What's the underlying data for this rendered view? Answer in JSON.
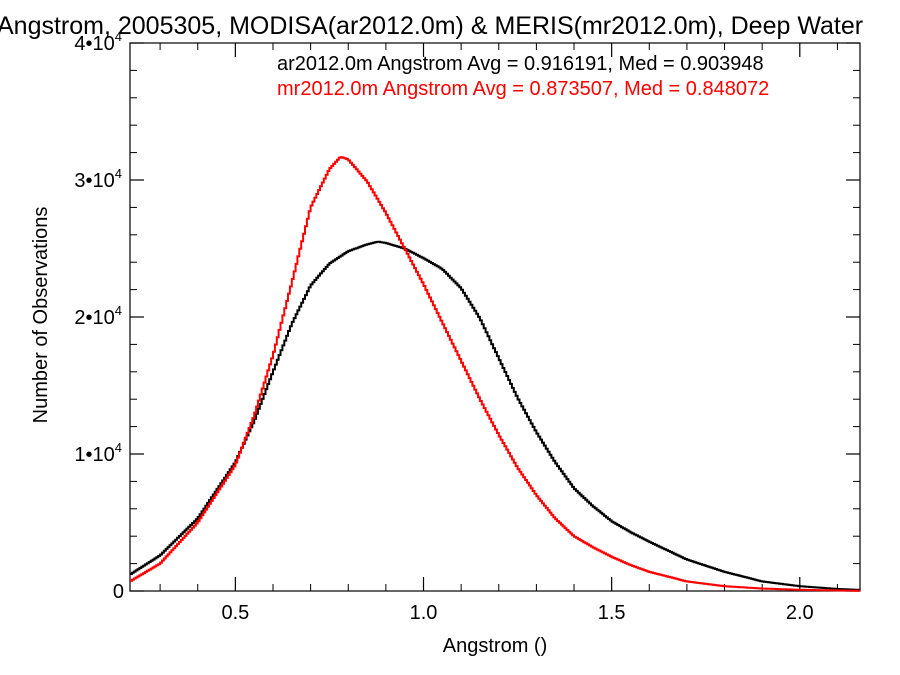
{
  "chart_data": {
    "type": "line",
    "title": "Angstrom, 2005305, MODISA(ar2012.0m) & MERIS(mr2012.0m), Deep Water",
    "xlabel": "Angstrom ()",
    "ylabel": "Number of Observations",
    "xlim": [
      0.22,
      2.16
    ],
    "ylim": [
      0,
      40000
    ],
    "x_ticks": [
      0.5,
      1.0,
      1.5,
      2.0
    ],
    "x_tick_labels": [
      "0.5",
      "1.0",
      "1.5",
      "2.0"
    ],
    "y_ticks": [
      {
        "value": 0,
        "base": "0",
        "exp": ""
      },
      {
        "value": 10000,
        "base": "1•10",
        "exp": "4"
      },
      {
        "value": 20000,
        "base": "2•10",
        "exp": "4"
      },
      {
        "value": 30000,
        "base": "3•10",
        "exp": "4"
      },
      {
        "value": 40000,
        "base": "4•10",
        "exp": "4"
      }
    ],
    "grid": false,
    "legend_position": "top-right",
    "series": [
      {
        "name": "ar2012.0m Angstrom Avg = 0.916191, Med = 0.903948",
        "color": "#000000",
        "x": [
          0.22,
          0.3,
          0.4,
          0.5,
          0.55,
          0.6,
          0.65,
          0.7,
          0.75,
          0.8,
          0.85,
          0.88,
          0.9,
          0.95,
          1.0,
          1.05,
          1.1,
          1.15,
          1.2,
          1.25,
          1.3,
          1.35,
          1.4,
          1.45,
          1.5,
          1.55,
          1.6,
          1.7,
          1.8,
          1.9,
          2.0,
          2.1,
          2.16
        ],
        "y": [
          1200,
          2600,
          5300,
          9400,
          12400,
          16000,
          19500,
          22300,
          23900,
          24800,
          25300,
          25500,
          25400,
          25000,
          24300,
          23500,
          22100,
          19900,
          17000,
          14100,
          11600,
          9400,
          7500,
          6200,
          5100,
          4300,
          3600,
          2300,
          1400,
          700,
          350,
          150,
          80
        ]
      },
      {
        "name": "mr2012.0m Angstrom Avg = 0.873507, Med = 0.848072",
        "color": "#ff0000",
        "x": [
          0.22,
          0.3,
          0.4,
          0.5,
          0.55,
          0.6,
          0.65,
          0.7,
          0.75,
          0.78,
          0.8,
          0.85,
          0.9,
          0.95,
          1.0,
          1.05,
          1.1,
          1.15,
          1.2,
          1.25,
          1.3,
          1.35,
          1.4,
          1.45,
          1.5,
          1.55,
          1.6,
          1.7,
          1.8,
          1.9,
          2.0,
          2.1,
          2.16
        ],
        "y": [
          700,
          2000,
          5000,
          9200,
          12800,
          17200,
          22500,
          28000,
          30800,
          31700,
          31500,
          29900,
          27600,
          25000,
          22400,
          19600,
          16800,
          14000,
          11400,
          9000,
          7000,
          5300,
          4000,
          3200,
          2500,
          1900,
          1400,
          700,
          350,
          180,
          90,
          40,
          20
        ]
      }
    ]
  }
}
